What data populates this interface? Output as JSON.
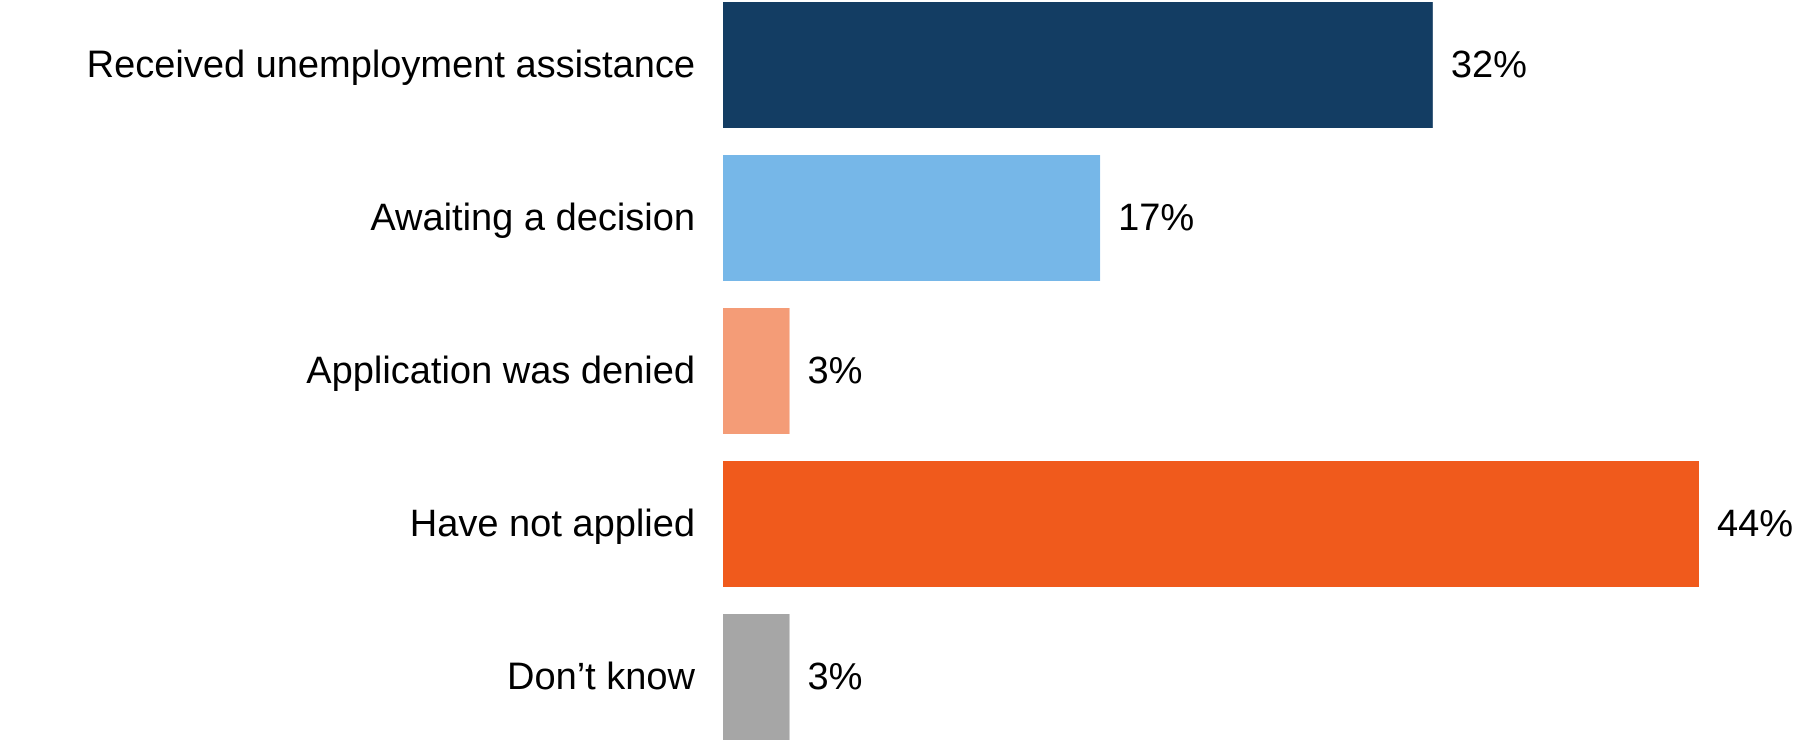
{
  "chart_data": {
    "type": "bar",
    "orientation": "horizontal",
    "categories": [
      "Received unemployment assistance",
      "Awaiting a decision",
      "Application was denied",
      "Have not applied",
      "Don’t know"
    ],
    "values": [
      32,
      17,
      3,
      44,
      3
    ],
    "value_labels": [
      "32%",
      "17%",
      "3%",
      "44%",
      "3%"
    ],
    "colors": [
      "#133d63",
      "#76b7e8",
      "#f49c77",
      "#f05a1c",
      "#a6a6a6"
    ],
    "unit": "%",
    "xlim": [
      0,
      44
    ],
    "grid": false,
    "legend": "none",
    "title": "",
    "xlabel": "",
    "ylabel": ""
  }
}
